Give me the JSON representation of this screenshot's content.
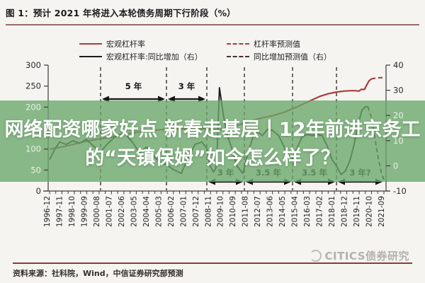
{
  "title": "图 1：预计 2021 年将进入本轮债务周期下行阶段（%）",
  "legend": {
    "items": [
      {
        "label": "宏观杠杆率",
        "color": "#a93c3c",
        "style": "solid"
      },
      {
        "label": "杠杆率预测值",
        "color": "#a93c3c",
        "style": "dashed"
      },
      {
        "label": "宏观杠杆率:同比增加（右）",
        "color": "#1c1c1c",
        "style": "solid"
      },
      {
        "label": "同比增加预测值（右）",
        "color": "#4a3030",
        "style": "dashed"
      }
    ]
  },
  "overlay": {
    "line1": "网络配资哪家好点 新春走基层丨12年前进京务工",
    "line2": "的“天镇保姆”如今怎么样了？"
  },
  "watermark": "CITICS债券研究",
  "source": "资料来源：社科院，Wind，中信证券研究部预测",
  "colors": {
    "accent_red": "#a93c3c",
    "line_black": "#1c1c1c",
    "dashed_dark": "#4a3030",
    "band": "rgba(106,167,106,0.78)",
    "overlay_text": "#ffffff",
    "title_rule": "#9c6a6a",
    "source_rule": "#8b3a3a",
    "watermark_gray": "#b5b2ac",
    "inband_label": "#e9f3e7",
    "axis": "#3a3a3a",
    "annotation": "#151515"
  },
  "chart_data": {
    "type": "line",
    "title": "预计 2021 年将进入本轮债务周期下行阶段（%）",
    "x_labels": [
      "1996-12",
      "1997-11",
      "1998-10",
      "1999-09",
      "2000-08",
      "2001-07",
      "2002-06",
      "2003-05",
      "2004-04",
      "2005-03",
      "2006-02",
      "2007-01",
      "2007-12",
      "2008-11",
      "2009-10",
      "2010-09",
      "2011-08",
      "2012-07",
      "2013-06",
      "2014-05",
      "2015-04",
      "2016-03",
      "2017-02",
      "2018-01",
      "2018-12",
      "2019-11",
      "2020-10",
      "2021-09"
    ],
    "left_axis": {
      "min": 0,
      "max": 300,
      "ticks": [
        0,
        50,
        100,
        150,
        200,
        250,
        300
      ]
    },
    "right_axis": {
      "min": -10,
      "max": 40,
      "ticks": [
        -10,
        0,
        10,
        20,
        30,
        40
      ]
    },
    "grid": false,
    "legend_position": "top",
    "series": [
      {
        "name": "宏观杠杆率",
        "axis": "left",
        "color": "#a93c3c",
        "style": "solid",
        "width": 2.2,
        "points": [
          [
            0.0,
            100
          ],
          [
            0.03,
            104
          ],
          [
            0.06,
            109
          ],
          [
            0.09,
            115
          ],
          [
            0.12,
            120
          ],
          [
            0.15,
            124
          ],
          [
            0.18,
            128
          ],
          [
            0.21,
            132
          ],
          [
            0.24,
            137
          ],
          [
            0.27,
            141
          ],
          [
            0.3,
            144
          ],
          [
            0.33,
            146
          ],
          [
            0.36,
            147.5
          ],
          [
            0.4,
            148.5
          ],
          [
            0.44,
            149
          ],
          [
            0.47,
            148
          ],
          [
            0.49,
            146.5
          ],
          [
            0.51,
            147
          ],
          [
            0.53,
            150
          ],
          [
            0.55,
            153
          ],
          [
            0.58,
            161
          ],
          [
            0.61,
            169
          ],
          [
            0.64,
            175
          ],
          [
            0.67,
            180
          ],
          [
            0.7,
            187
          ],
          [
            0.727,
            196
          ],
          [
            0.755,
            206
          ],
          [
            0.785,
            217
          ],
          [
            0.81,
            226
          ],
          [
            0.835,
            232
          ],
          [
            0.86,
            236
          ],
          [
            0.88,
            238
          ],
          [
            0.9,
            239
          ],
          [
            0.915,
            239
          ],
          [
            0.925,
            238
          ],
          [
            0.932,
            242
          ],
          [
            0.942,
            242
          ],
          [
            0.948,
            252
          ],
          [
            0.955,
            262
          ],
          [
            0.962,
            267
          ]
        ]
      },
      {
        "name": "杠杆率预测值",
        "axis": "left",
        "color": "#a93c3c",
        "style": "dashed",
        "width": 2.2,
        "points": [
          [
            0.962,
            267
          ],
          [
            0.975,
            269
          ],
          [
            0.988,
            270
          ],
          [
            1.0,
            270
          ]
        ]
      },
      {
        "name": "宏观杠杆率:同比增加（右）",
        "axis": "right",
        "color": "#1c1c1c",
        "style": "solid",
        "width": 1.9,
        "points": [
          [
            0.0,
            2.5
          ],
          [
            0.015,
            6.5
          ],
          [
            0.03,
            9.5
          ],
          [
            0.05,
            8.5
          ],
          [
            0.07,
            10
          ],
          [
            0.09,
            9
          ],
          [
            0.11,
            10.5
          ],
          [
            0.13,
            8
          ],
          [
            0.152,
            5.5
          ],
          [
            0.175,
            9
          ],
          [
            0.2,
            12
          ],
          [
            0.225,
            13
          ],
          [
            0.25,
            9
          ],
          [
            0.27,
            5
          ],
          [
            0.29,
            7.5
          ],
          [
            0.31,
            4
          ],
          [
            0.33,
            1.5
          ],
          [
            0.35,
            0.5
          ],
          [
            0.37,
            -1.5
          ],
          [
            0.394,
            -3
          ],
          [
            0.415,
            3.5
          ],
          [
            0.435,
            8.5
          ],
          [
            0.455,
            9.5
          ],
          [
            0.47,
            7
          ],
          [
            0.48,
            0
          ],
          [
            0.49,
            -2.5
          ],
          [
            0.497,
            -1
          ],
          [
            0.502,
            8
          ],
          [
            0.508,
            31
          ],
          [
            0.52,
            20
          ],
          [
            0.532,
            12
          ],
          [
            0.545,
            7
          ],
          [
            0.56,
            0
          ],
          [
            0.578,
            -3
          ],
          [
            0.595,
            6
          ],
          [
            0.61,
            12
          ],
          [
            0.622,
            13.5
          ],
          [
            0.636,
            12
          ],
          [
            0.652,
            14.5
          ],
          [
            0.668,
            14
          ],
          [
            0.685,
            12
          ],
          [
            0.7,
            8
          ],
          [
            0.715,
            4
          ],
          [
            0.727,
            3
          ],
          [
            0.74,
            7
          ],
          [
            0.755,
            11.5
          ],
          [
            0.77,
            12.5
          ],
          [
            0.785,
            12
          ],
          [
            0.8,
            12.5
          ],
          [
            0.815,
            12
          ],
          [
            0.83,
            8
          ],
          [
            0.845,
            2.5
          ],
          [
            0.858,
            0
          ],
          [
            0.872,
            -3.5
          ],
          [
            0.885,
            -2
          ],
          [
            0.898,
            2
          ],
          [
            0.91,
            8
          ],
          [
            0.922,
            16
          ],
          [
            0.934,
            22
          ],
          [
            0.945,
            23.5
          ],
          [
            0.952,
            23.5
          ]
        ]
      },
      {
        "name": "同比增加预测值（右）",
        "axis": "right",
        "color": "#2e2222",
        "style": "dashed",
        "width": 1.9,
        "points": [
          [
            0.952,
            23.5
          ],
          [
            0.963,
            19
          ],
          [
            0.973,
            11
          ],
          [
            0.983,
            3
          ],
          [
            0.993,
            -3
          ],
          [
            1.0,
            -5.5
          ]
        ]
      }
    ],
    "annotations": {
      "dividers": [
        0.1525,
        0.3496,
        0.4703,
        0.5826,
        0.7267,
        0.8581
      ],
      "spans_top": [
        {
          "from": 0.1525,
          "to": 0.3496,
          "label": "5 年"
        },
        {
          "from": 0.3496,
          "to": 0.4703,
          "label": "3 年"
        }
      ],
      "spans_bottom": [
        {
          "from": 0.4703,
          "to": 0.5826,
          "label": "3 年"
        },
        {
          "from": 0.5826,
          "to": 0.7267,
          "label": "3.5 年"
        },
        {
          "from": 0.7267,
          "to": 0.8581,
          "label": "3.5 年"
        },
        {
          "from": 0.8581,
          "to": 1.0,
          "label": "3 年?"
        }
      ]
    }
  }
}
